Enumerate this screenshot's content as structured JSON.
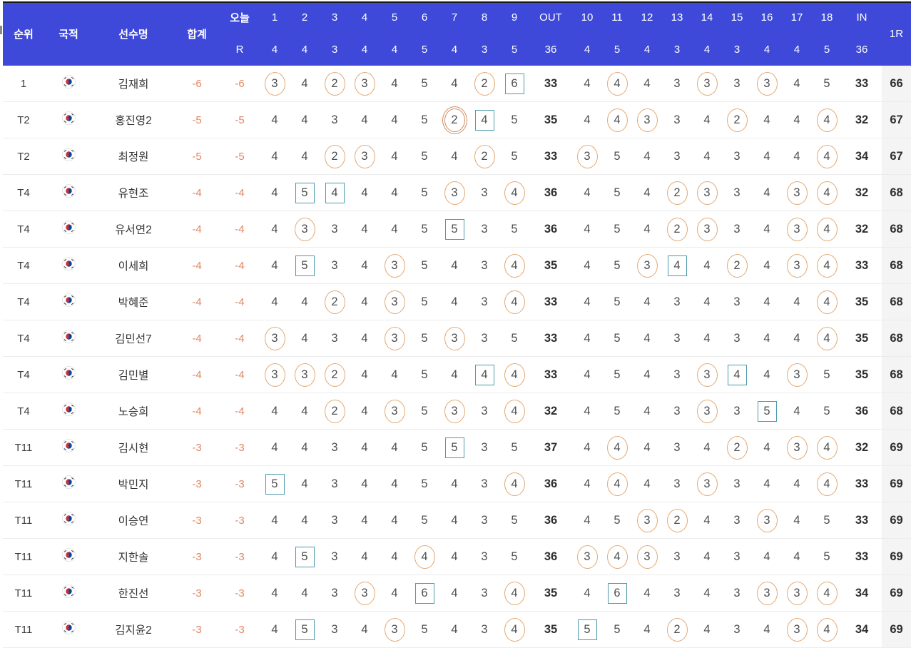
{
  "colors": {
    "header_bg": "#3e49da",
    "score_accent": "#e08764",
    "birdie_circle": "#e3a873",
    "eagle_circle": "#cf8d63",
    "bogey_box": "#4d9aad",
    "round_col_bg": "#f4f4f4",
    "flag_red": "#cd2e3a",
    "flag_blue": "#0047a0"
  },
  "header": {
    "rank": "순위",
    "nationality": "국적",
    "player": "선수명",
    "total": "합계",
    "today": "오늘",
    "r": "R",
    "out": "OUT",
    "in": "IN",
    "round": "1R",
    "front_holes": [
      "1",
      "2",
      "3",
      "4",
      "5",
      "6",
      "7",
      "8",
      "9"
    ],
    "back_holes": [
      "10",
      "11",
      "12",
      "13",
      "14",
      "15",
      "16",
      "17",
      "18"
    ],
    "front_pars": [
      "4",
      "4",
      "3",
      "4",
      "4",
      "5",
      "4",
      "3",
      "5"
    ],
    "out_par": "36",
    "back_pars": [
      "4",
      "5",
      "4",
      "3",
      "4",
      "3",
      "4",
      "4",
      "5"
    ],
    "in_par": "36"
  },
  "marks_legend": {
    "c": "birdie-circle",
    "b": "bogey-box",
    "e": "eagle-double-circle"
  },
  "rows": [
    {
      "rank": "1",
      "flag": "KR",
      "name": "김재희",
      "total": "-6",
      "today": "-6",
      "front": [
        [
          "3",
          "c"
        ],
        [
          "4",
          ""
        ],
        [
          "2",
          "c"
        ],
        [
          "3",
          "c"
        ],
        [
          "4",
          ""
        ],
        [
          "5",
          ""
        ],
        [
          "4",
          ""
        ],
        [
          "2",
          "c"
        ],
        [
          "6",
          "b"
        ]
      ],
      "out": "33",
      "back": [
        [
          "4",
          ""
        ],
        [
          "4",
          "c"
        ],
        [
          "4",
          ""
        ],
        [
          "3",
          ""
        ],
        [
          "3",
          "c"
        ],
        [
          "3",
          ""
        ],
        [
          "3",
          "c"
        ],
        [
          "4",
          ""
        ],
        [
          "5",
          ""
        ]
      ],
      "in": "33",
      "r1": "66"
    },
    {
      "rank": "T2",
      "flag": "KR",
      "name": "홍진영2",
      "total": "-5",
      "today": "-5",
      "front": [
        [
          "4",
          ""
        ],
        [
          "4",
          ""
        ],
        [
          "3",
          ""
        ],
        [
          "4",
          ""
        ],
        [
          "4",
          ""
        ],
        [
          "5",
          ""
        ],
        [
          "2",
          "e"
        ],
        [
          "4",
          "b"
        ],
        [
          "5",
          ""
        ]
      ],
      "out": "35",
      "back": [
        [
          "4",
          ""
        ],
        [
          "4",
          "c"
        ],
        [
          "3",
          "c"
        ],
        [
          "3",
          ""
        ],
        [
          "4",
          ""
        ],
        [
          "2",
          "c"
        ],
        [
          "4",
          ""
        ],
        [
          "4",
          ""
        ],
        [
          "4",
          "c"
        ]
      ],
      "in": "32",
      "r1": "67"
    },
    {
      "rank": "T2",
      "flag": "KR",
      "name": "최정원",
      "total": "-5",
      "today": "-5",
      "front": [
        [
          "4",
          ""
        ],
        [
          "4",
          ""
        ],
        [
          "2",
          "c"
        ],
        [
          "3",
          "c"
        ],
        [
          "4",
          ""
        ],
        [
          "5",
          ""
        ],
        [
          "4",
          ""
        ],
        [
          "2",
          "c"
        ],
        [
          "5",
          ""
        ]
      ],
      "out": "33",
      "back": [
        [
          "3",
          "c"
        ],
        [
          "5",
          ""
        ],
        [
          "4",
          ""
        ],
        [
          "3",
          ""
        ],
        [
          "4",
          ""
        ],
        [
          "3",
          ""
        ],
        [
          "4",
          ""
        ],
        [
          "4",
          ""
        ],
        [
          "4",
          "c"
        ]
      ],
      "in": "34",
      "r1": "67"
    },
    {
      "rank": "T4",
      "flag": "KR",
      "name": "유현조",
      "total": "-4",
      "today": "-4",
      "front": [
        [
          "4",
          ""
        ],
        [
          "5",
          "b"
        ],
        [
          "4",
          "b"
        ],
        [
          "4",
          ""
        ],
        [
          "4",
          ""
        ],
        [
          "5",
          ""
        ],
        [
          "3",
          "c"
        ],
        [
          "3",
          ""
        ],
        [
          "4",
          "c"
        ]
      ],
      "out": "36",
      "back": [
        [
          "4",
          ""
        ],
        [
          "5",
          ""
        ],
        [
          "4",
          ""
        ],
        [
          "2",
          "c"
        ],
        [
          "3",
          "c"
        ],
        [
          "3",
          ""
        ],
        [
          "4",
          ""
        ],
        [
          "3",
          "c"
        ],
        [
          "4",
          "c"
        ]
      ],
      "in": "32",
      "r1": "68"
    },
    {
      "rank": "T4",
      "flag": "KR",
      "name": "유서연2",
      "total": "-4",
      "today": "-4",
      "front": [
        [
          "4",
          ""
        ],
        [
          "3",
          "c"
        ],
        [
          "3",
          ""
        ],
        [
          "4",
          ""
        ],
        [
          "4",
          ""
        ],
        [
          "5",
          ""
        ],
        [
          "5",
          "b"
        ],
        [
          "3",
          ""
        ],
        [
          "5",
          ""
        ]
      ],
      "out": "36",
      "back": [
        [
          "4",
          ""
        ],
        [
          "5",
          ""
        ],
        [
          "4",
          ""
        ],
        [
          "2",
          "c"
        ],
        [
          "3",
          "c"
        ],
        [
          "3",
          ""
        ],
        [
          "4",
          ""
        ],
        [
          "3",
          "c"
        ],
        [
          "4",
          "c"
        ]
      ],
      "in": "32",
      "r1": "68"
    },
    {
      "rank": "T4",
      "flag": "KR",
      "name": "이세희",
      "total": "-4",
      "today": "-4",
      "front": [
        [
          "4",
          ""
        ],
        [
          "5",
          "b"
        ],
        [
          "3",
          ""
        ],
        [
          "4",
          ""
        ],
        [
          "3",
          "c"
        ],
        [
          "5",
          ""
        ],
        [
          "4",
          ""
        ],
        [
          "3",
          ""
        ],
        [
          "4",
          "c"
        ]
      ],
      "out": "35",
      "back": [
        [
          "4",
          ""
        ],
        [
          "5",
          ""
        ],
        [
          "3",
          "c"
        ],
        [
          "4",
          "b"
        ],
        [
          "4",
          ""
        ],
        [
          "2",
          "c"
        ],
        [
          "4",
          ""
        ],
        [
          "3",
          "c"
        ],
        [
          "4",
          "c"
        ]
      ],
      "in": "33",
      "r1": "68"
    },
    {
      "rank": "T4",
      "flag": "KR",
      "name": "박혜준",
      "total": "-4",
      "today": "-4",
      "front": [
        [
          "4",
          ""
        ],
        [
          "4",
          ""
        ],
        [
          "2",
          "c"
        ],
        [
          "4",
          ""
        ],
        [
          "3",
          "c"
        ],
        [
          "5",
          ""
        ],
        [
          "4",
          ""
        ],
        [
          "3",
          ""
        ],
        [
          "4",
          "c"
        ]
      ],
      "out": "33",
      "back": [
        [
          "4",
          ""
        ],
        [
          "5",
          ""
        ],
        [
          "4",
          ""
        ],
        [
          "3",
          ""
        ],
        [
          "4",
          ""
        ],
        [
          "3",
          ""
        ],
        [
          "4",
          ""
        ],
        [
          "4",
          ""
        ],
        [
          "4",
          "c"
        ]
      ],
      "in": "35",
      "r1": "68"
    },
    {
      "rank": "T4",
      "flag": "KR",
      "name": "김민선7",
      "total": "-4",
      "today": "-4",
      "front": [
        [
          "3",
          "c"
        ],
        [
          "4",
          ""
        ],
        [
          "3",
          ""
        ],
        [
          "4",
          ""
        ],
        [
          "3",
          "c"
        ],
        [
          "5",
          ""
        ],
        [
          "3",
          "c"
        ],
        [
          "3",
          ""
        ],
        [
          "5",
          ""
        ]
      ],
      "out": "33",
      "back": [
        [
          "4",
          ""
        ],
        [
          "5",
          ""
        ],
        [
          "4",
          ""
        ],
        [
          "3",
          ""
        ],
        [
          "4",
          ""
        ],
        [
          "3",
          ""
        ],
        [
          "4",
          ""
        ],
        [
          "4",
          ""
        ],
        [
          "4",
          "c"
        ]
      ],
      "in": "35",
      "r1": "68"
    },
    {
      "rank": "T4",
      "flag": "KR",
      "name": "김민별",
      "total": "-4",
      "today": "-4",
      "front": [
        [
          "3",
          "c"
        ],
        [
          "3",
          "c"
        ],
        [
          "2",
          "c"
        ],
        [
          "4",
          ""
        ],
        [
          "4",
          ""
        ],
        [
          "5",
          ""
        ],
        [
          "4",
          ""
        ],
        [
          "4",
          "b"
        ],
        [
          "4",
          "c"
        ]
      ],
      "out": "33",
      "back": [
        [
          "4",
          ""
        ],
        [
          "5",
          ""
        ],
        [
          "4",
          ""
        ],
        [
          "3",
          ""
        ],
        [
          "3",
          "c"
        ],
        [
          "4",
          "b"
        ],
        [
          "4",
          ""
        ],
        [
          "3",
          "c"
        ],
        [
          "5",
          ""
        ]
      ],
      "in": "35",
      "r1": "68"
    },
    {
      "rank": "T4",
      "flag": "KR",
      "name": "노승희",
      "total": "-4",
      "today": "-4",
      "front": [
        [
          "4",
          ""
        ],
        [
          "4",
          ""
        ],
        [
          "2",
          "c"
        ],
        [
          "4",
          ""
        ],
        [
          "3",
          "c"
        ],
        [
          "5",
          ""
        ],
        [
          "3",
          "c"
        ],
        [
          "3",
          ""
        ],
        [
          "4",
          "c"
        ]
      ],
      "out": "32",
      "back": [
        [
          "4",
          ""
        ],
        [
          "5",
          ""
        ],
        [
          "4",
          ""
        ],
        [
          "3",
          ""
        ],
        [
          "3",
          "c"
        ],
        [
          "3",
          ""
        ],
        [
          "5",
          "b"
        ],
        [
          "4",
          ""
        ],
        [
          "5",
          ""
        ]
      ],
      "in": "36",
      "r1": "68"
    },
    {
      "rank": "T11",
      "flag": "KR",
      "name": "김시현",
      "total": "-3",
      "today": "-3",
      "front": [
        [
          "4",
          ""
        ],
        [
          "4",
          ""
        ],
        [
          "3",
          ""
        ],
        [
          "4",
          ""
        ],
        [
          "4",
          ""
        ],
        [
          "5",
          ""
        ],
        [
          "5",
          "b"
        ],
        [
          "3",
          ""
        ],
        [
          "5",
          ""
        ]
      ],
      "out": "37",
      "back": [
        [
          "4",
          ""
        ],
        [
          "4",
          "c"
        ],
        [
          "4",
          ""
        ],
        [
          "3",
          ""
        ],
        [
          "4",
          ""
        ],
        [
          "2",
          "c"
        ],
        [
          "4",
          ""
        ],
        [
          "3",
          "c"
        ],
        [
          "4",
          "c"
        ]
      ],
      "in": "32",
      "r1": "69"
    },
    {
      "rank": "T11",
      "flag": "KR",
      "name": "박민지",
      "total": "-3",
      "today": "-3",
      "front": [
        [
          "5",
          "b"
        ],
        [
          "4",
          ""
        ],
        [
          "3",
          ""
        ],
        [
          "4",
          ""
        ],
        [
          "4",
          ""
        ],
        [
          "5",
          ""
        ],
        [
          "4",
          ""
        ],
        [
          "3",
          ""
        ],
        [
          "4",
          "c"
        ]
      ],
      "out": "36",
      "back": [
        [
          "4",
          ""
        ],
        [
          "4",
          "c"
        ],
        [
          "4",
          ""
        ],
        [
          "3",
          ""
        ],
        [
          "3",
          "c"
        ],
        [
          "3",
          ""
        ],
        [
          "4",
          ""
        ],
        [
          "4",
          ""
        ],
        [
          "4",
          "c"
        ]
      ],
      "in": "33",
      "r1": "69"
    },
    {
      "rank": "T11",
      "flag": "KR",
      "name": "이승연",
      "total": "-3",
      "today": "-3",
      "front": [
        [
          "4",
          ""
        ],
        [
          "4",
          ""
        ],
        [
          "3",
          ""
        ],
        [
          "4",
          ""
        ],
        [
          "4",
          ""
        ],
        [
          "5",
          ""
        ],
        [
          "4",
          ""
        ],
        [
          "3",
          ""
        ],
        [
          "5",
          ""
        ]
      ],
      "out": "36",
      "back": [
        [
          "4",
          ""
        ],
        [
          "5",
          ""
        ],
        [
          "3",
          "c"
        ],
        [
          "2",
          "c"
        ],
        [
          "4",
          ""
        ],
        [
          "3",
          ""
        ],
        [
          "3",
          "c"
        ],
        [
          "4",
          ""
        ],
        [
          "5",
          ""
        ]
      ],
      "in": "33",
      "r1": "69"
    },
    {
      "rank": "T11",
      "flag": "KR",
      "name": "지한솔",
      "total": "-3",
      "today": "-3",
      "front": [
        [
          "4",
          ""
        ],
        [
          "5",
          "b"
        ],
        [
          "3",
          ""
        ],
        [
          "4",
          ""
        ],
        [
          "4",
          ""
        ],
        [
          "4",
          "c"
        ],
        [
          "4",
          ""
        ],
        [
          "3",
          ""
        ],
        [
          "5",
          ""
        ]
      ],
      "out": "36",
      "back": [
        [
          "3",
          "c"
        ],
        [
          "4",
          "c"
        ],
        [
          "3",
          "c"
        ],
        [
          "3",
          ""
        ],
        [
          "4",
          ""
        ],
        [
          "3",
          ""
        ],
        [
          "4",
          ""
        ],
        [
          "4",
          ""
        ],
        [
          "5",
          ""
        ]
      ],
      "in": "33",
      "r1": "69"
    },
    {
      "rank": "T11",
      "flag": "KR",
      "name": "한진선",
      "total": "-3",
      "today": "-3",
      "front": [
        [
          "4",
          ""
        ],
        [
          "4",
          ""
        ],
        [
          "3",
          ""
        ],
        [
          "3",
          "c"
        ],
        [
          "4",
          ""
        ],
        [
          "6",
          "b"
        ],
        [
          "4",
          ""
        ],
        [
          "3",
          ""
        ],
        [
          "4",
          "c"
        ]
      ],
      "out": "35",
      "back": [
        [
          "4",
          ""
        ],
        [
          "6",
          "b"
        ],
        [
          "4",
          ""
        ],
        [
          "3",
          ""
        ],
        [
          "4",
          ""
        ],
        [
          "3",
          ""
        ],
        [
          "3",
          "c"
        ],
        [
          "3",
          "c"
        ],
        [
          "4",
          "c"
        ]
      ],
      "in": "34",
      "r1": "69"
    },
    {
      "rank": "T11",
      "flag": "KR",
      "name": "김지윤2",
      "total": "-3",
      "today": "-3",
      "front": [
        [
          "4",
          ""
        ],
        [
          "5",
          "b"
        ],
        [
          "3",
          ""
        ],
        [
          "4",
          ""
        ],
        [
          "3",
          "c"
        ],
        [
          "5",
          ""
        ],
        [
          "4",
          ""
        ],
        [
          "3",
          ""
        ],
        [
          "4",
          "c"
        ]
      ],
      "out": "35",
      "back": [
        [
          "5",
          "b"
        ],
        [
          "5",
          ""
        ],
        [
          "4",
          ""
        ],
        [
          "2",
          "c"
        ],
        [
          "4",
          ""
        ],
        [
          "3",
          ""
        ],
        [
          "4",
          ""
        ],
        [
          "3",
          "c"
        ],
        [
          "4",
          "c"
        ]
      ],
      "in": "34",
      "r1": "69"
    }
  ]
}
